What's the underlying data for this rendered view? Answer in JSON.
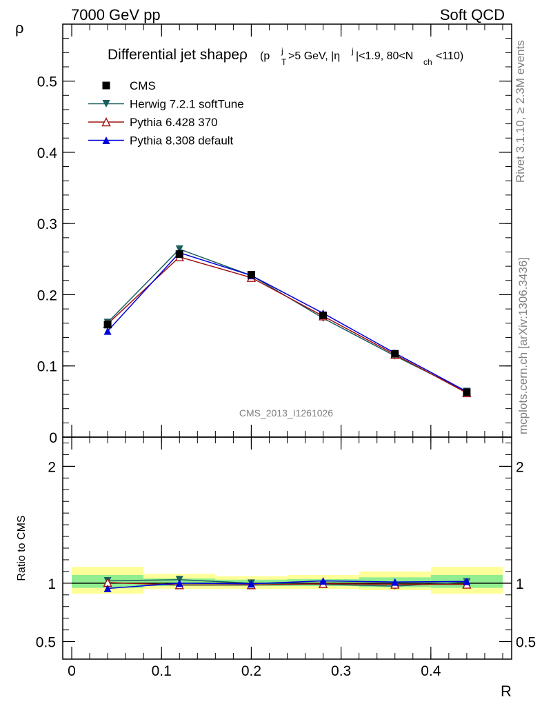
{
  "header": {
    "left": "7000 GeV pp",
    "right": "Soft QCD"
  },
  "side_labels": {
    "rivet": "Rivet 3.1.10, ≥ 2.3M events",
    "mcplots": "mcplots.cern.ch [arXiv:1306.3436]"
  },
  "chart_data": [
    {
      "type": "line",
      "title_main": "Differential jet shapeρ",
      "title_cut_parts": [
        "(p",
        "j",
        "T",
        ">5 GeV, |η",
        "j",
        "|<1.9, 80<N",
        "ch",
        "<110)"
      ],
      "analysis_label": "CMS_2013_I1261026",
      "xlabel": "R",
      "ylabel": "ρ",
      "xlim": [
        -0.01,
        0.49
      ],
      "ylim": [
        0,
        0.58
      ],
      "x_ticks": [
        0,
        0.1,
        0.2,
        0.3,
        0.4
      ],
      "x_tick_labels": [
        "0",
        "0.1",
        "0.2",
        "0.3",
        "0.4"
      ],
      "y_ticks": [
        0,
        0.1,
        0.2,
        0.3,
        0.4,
        0.5
      ],
      "y_tick_labels": [
        "0",
        "0.1",
        "0.2",
        "0.3",
        "0.4",
        "0.5"
      ],
      "legend_position": "top-left",
      "x": [
        0.04,
        0.12,
        0.2,
        0.28,
        0.36,
        0.44
      ],
      "series": [
        {
          "name": "CMS",
          "values": [
            0.158,
            0.257,
            0.228,
            0.171,
            0.117,
            0.063
          ],
          "color": "#000000",
          "marker": "square"
        },
        {
          "name": "Herwig 7.2.1 softTune",
          "values": [
            0.161,
            0.264,
            0.227,
            0.167,
            0.114,
            0.064
          ],
          "color": "#1a5e5e",
          "marker": "triangle-down"
        },
        {
          "name": "Pythia 6.428 370",
          "values": [
            0.159,
            0.253,
            0.224,
            0.17,
            0.116,
            0.062
          ],
          "color": "#a01010",
          "marker": "triangle-up-open"
        },
        {
          "name": "Pythia 8.308 default",
          "values": [
            0.149,
            0.259,
            0.227,
            0.174,
            0.118,
            0.064
          ],
          "color": "#0000dd",
          "marker": "triangle-up"
        }
      ]
    },
    {
      "type": "line",
      "ylabel": "Ratio to CMS",
      "xlabel": "R",
      "xlim": [
        -0.01,
        0.49
      ],
      "ylim": [
        0.35,
        2.25
      ],
      "y_ticks": [
        0.5,
        1,
        2
      ],
      "y_tick_labels": [
        "0.5",
        "1",
        "2"
      ],
      "bands": {
        "bin_edges": [
          0,
          0.08,
          0.16,
          0.24,
          0.32,
          0.4,
          0.48
        ],
        "yellow_lo": [
          0.91,
          0.95,
          0.95,
          0.95,
          0.94,
          0.91
        ],
        "yellow_hi": [
          1.14,
          1.08,
          1.06,
          1.07,
          1.1,
          1.14
        ],
        "green_lo": [
          0.96,
          0.975,
          0.975,
          0.975,
          0.965,
          0.96
        ],
        "green_hi": [
          1.07,
          1.04,
          1.03,
          1.035,
          1.05,
          1.07
        ]
      },
      "x": [
        0.04,
        0.12,
        0.2,
        0.28,
        0.36,
        0.44
      ],
      "series": [
        {
          "name": "Herwig 7.2.1 softTune",
          "values": [
            1.02,
            1.03,
            1.0,
            0.99,
            0.975,
            1.01
          ],
          "color": "#1a5e5e",
          "marker": "triangle-down"
        },
        {
          "name": "Pythia 6.428 370",
          "values": [
            1.005,
            0.985,
            0.985,
            0.995,
            0.99,
            0.99
          ],
          "color": "#a01010",
          "marker": "triangle-up-open"
        },
        {
          "name": "Pythia 8.308 default",
          "values": [
            0.955,
            1.0,
            0.995,
            1.02,
            1.01,
            1.015
          ],
          "color": "#0000dd",
          "marker": "triangle-up"
        }
      ]
    }
  ]
}
